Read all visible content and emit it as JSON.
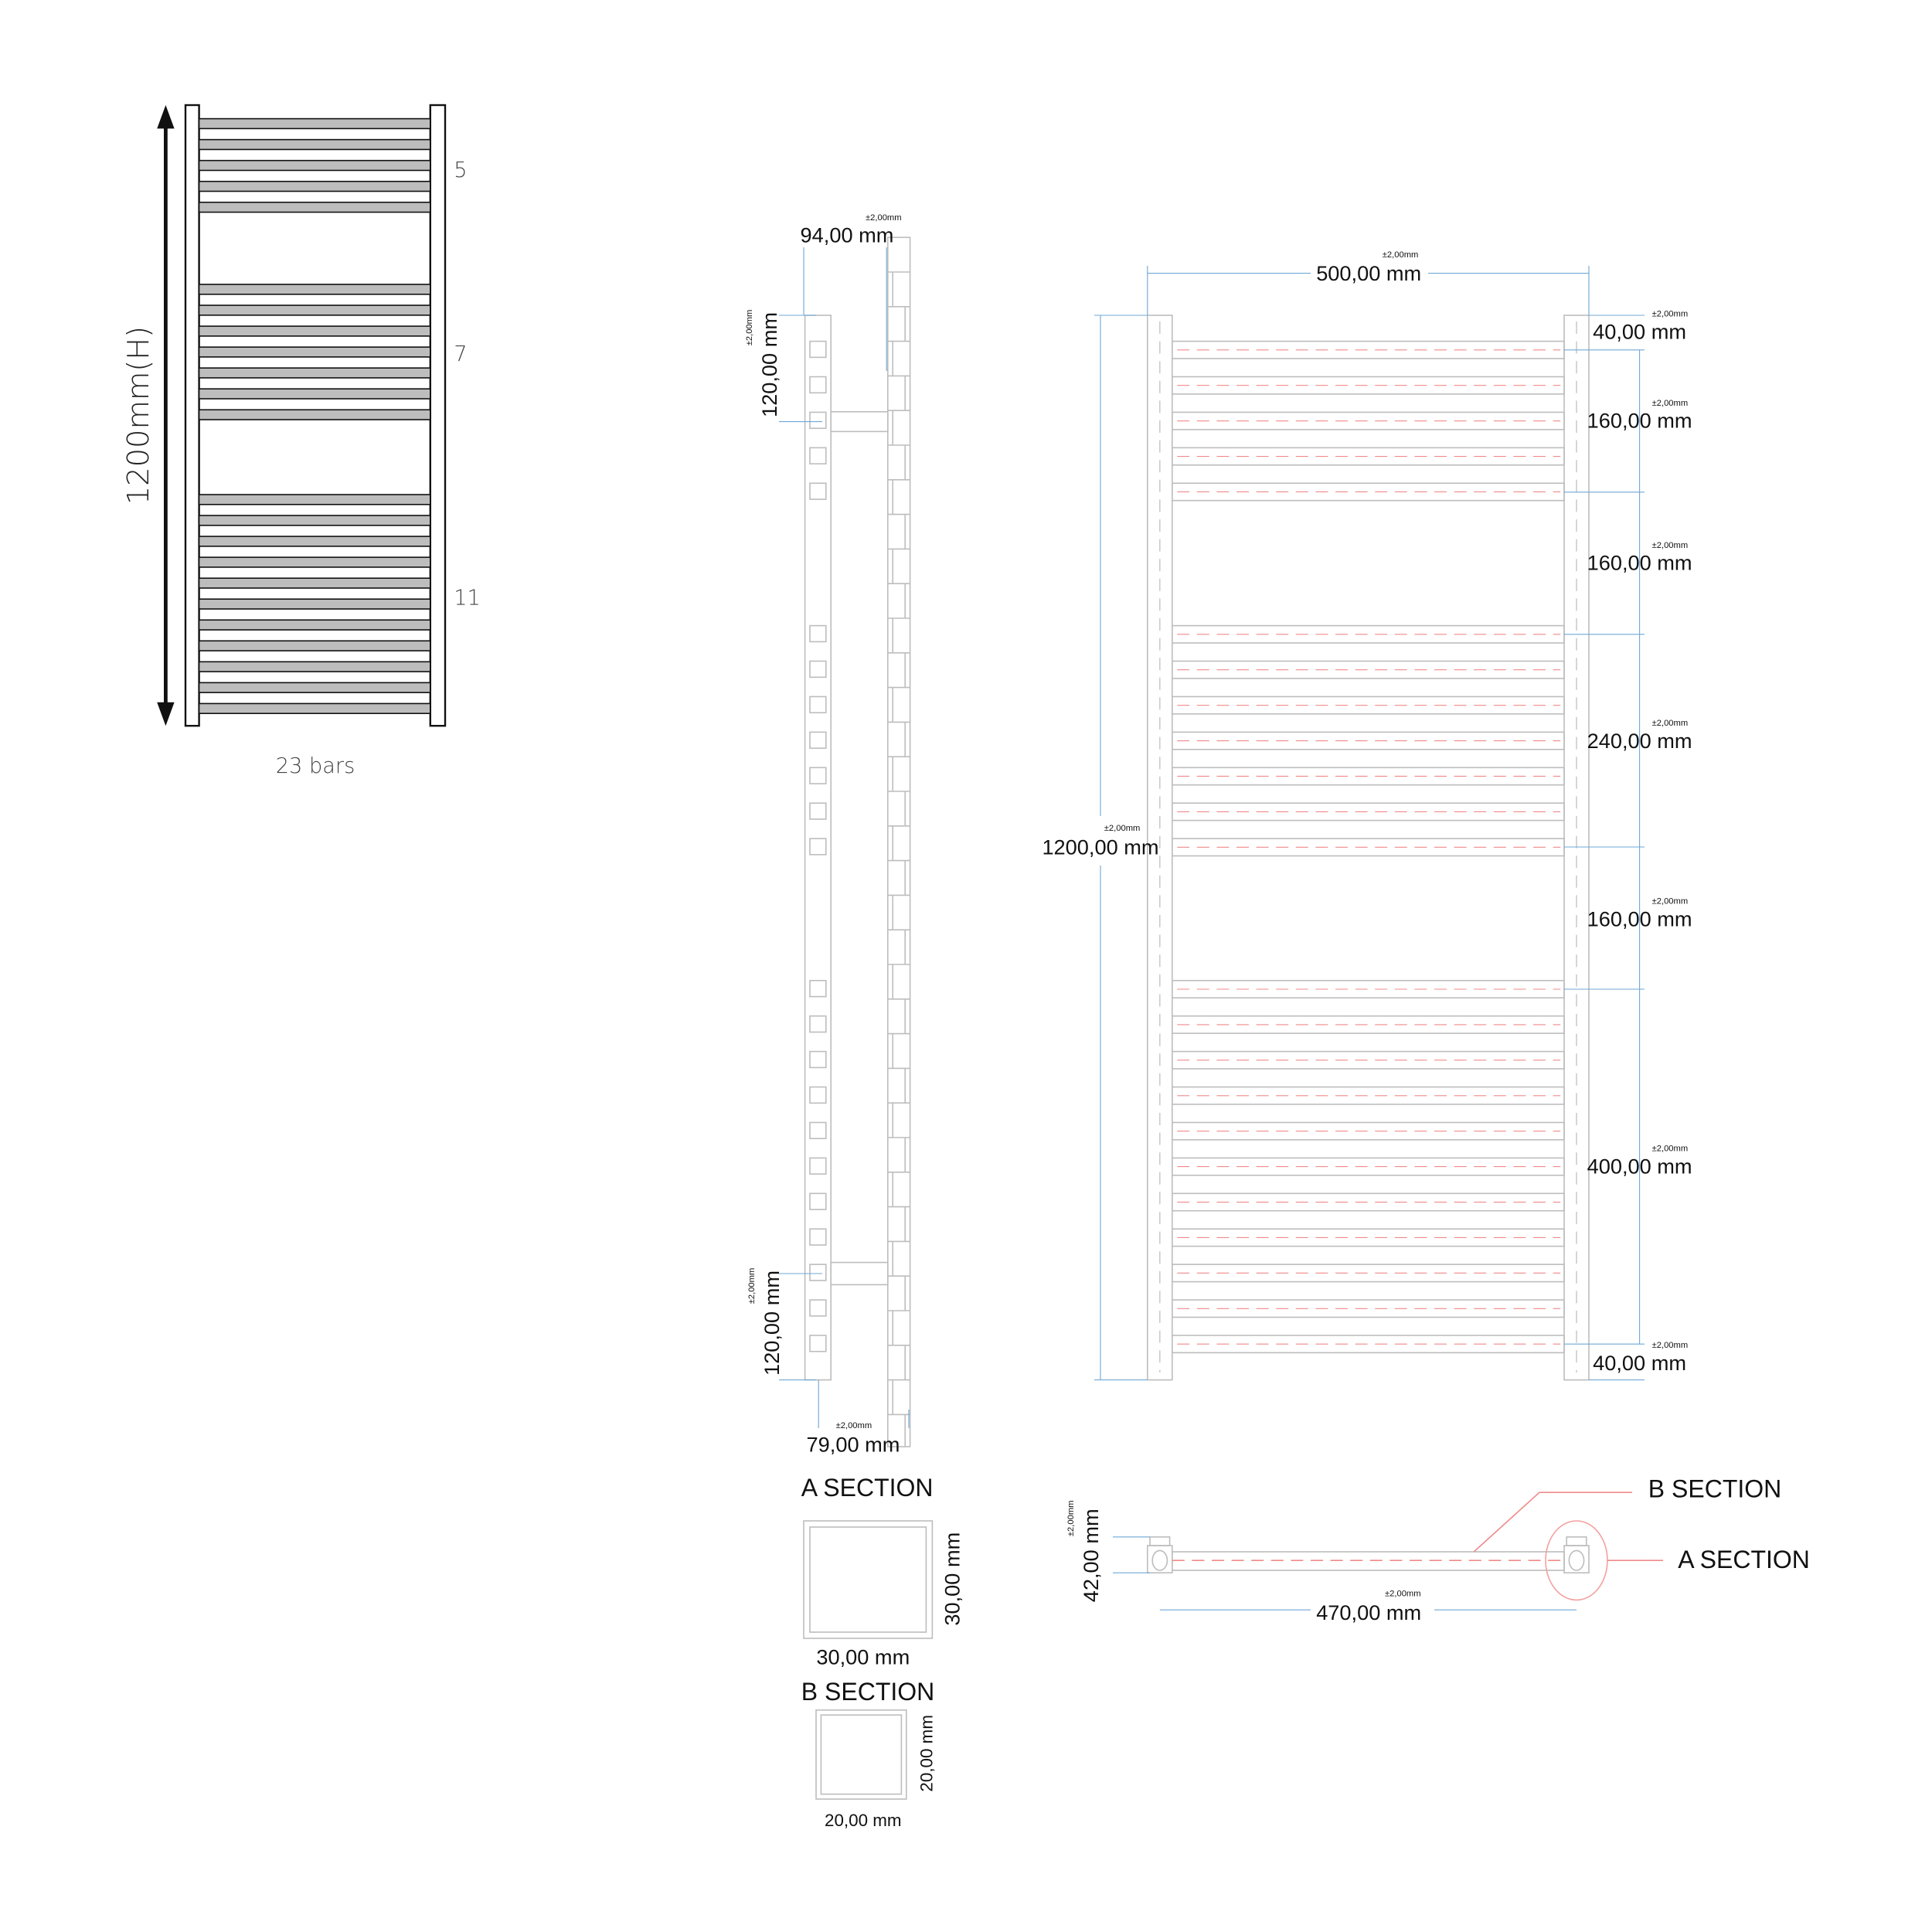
{
  "schematic": {
    "height_label": "1200mm(H)",
    "groups": [
      {
        "count": 5,
        "label": "5"
      },
      {
        "count": 7,
        "label": "7"
      },
      {
        "count": 11,
        "label": "11"
      }
    ],
    "total_label": "23 bars"
  },
  "tolerance": "±2,00mm",
  "side_view": {
    "depth": "94,00 mm",
    "top_bracket": "120,00 mm",
    "bottom_bracket": "120,00 mm",
    "bottom_depth": "79,00 mm"
  },
  "front_view": {
    "width": "500,00 mm",
    "height": "1200,00 mm",
    "spacings": [
      "40,00 mm",
      "160,00 mm",
      "160,00 mm",
      "240,00 mm",
      "160,00 mm",
      "400,00 mm",
      "40,00 mm"
    ]
  },
  "sections": {
    "a_title": "A SECTION",
    "a_width": "30,00 mm",
    "a_height": "30,00 mm",
    "b_title": "B SECTION",
    "b_width": "20,00 mm",
    "b_height": "20,00 mm"
  },
  "top_view": {
    "depth": "42,00 mm",
    "centers": "470,00 mm",
    "b_label": "B SECTION",
    "a_label": "A SECTION"
  },
  "colors": {
    "outline": "#b8b8b8",
    "dimension": "#6fa8d6",
    "centerline": "#f08a8a",
    "bar_fill": "#bdbdbd"
  }
}
